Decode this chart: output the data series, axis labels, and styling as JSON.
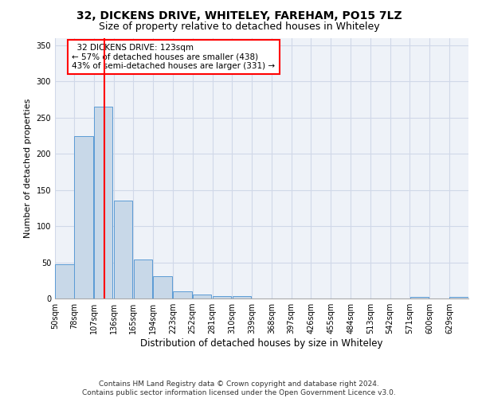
{
  "title1": "32, DICKENS DRIVE, WHITELEY, FAREHAM, PO15 7LZ",
  "title2": "Size of property relative to detached houses in Whiteley",
  "xlabel": "Distribution of detached houses by size in Whiteley",
  "ylabel": "Number of detached properties",
  "bar_color": "#c8d8e8",
  "bar_edge_color": "#5b9bd5",
  "bar_heights": [
    47,
    224,
    265,
    135,
    54,
    31,
    10,
    6,
    3,
    3,
    0,
    0,
    0,
    0,
    0,
    0,
    0,
    0,
    2,
    0,
    2
  ],
  "bin_edges": [
    50,
    78,
    107,
    136,
    165,
    194,
    223,
    252,
    281,
    310,
    339,
    368,
    397,
    426,
    455,
    484,
    513,
    542,
    571,
    600,
    629
  ],
  "x_labels": [
    "50sqm",
    "78sqm",
    "107sqm",
    "136sqm",
    "165sqm",
    "194sqm",
    "223sqm",
    "252sqm",
    "281sqm",
    "310sqm",
    "339sqm",
    "368sqm",
    "397sqm",
    "426sqm",
    "455sqm",
    "484sqm",
    "513sqm",
    "542sqm",
    "571sqm",
    "600sqm",
    "629sqm"
  ],
  "red_line_x": 123,
  "annotation_text": "  32 DICKENS DRIVE: 123sqm\n← 57% of detached houses are smaller (438)\n43% of semi-detached houses are larger (331) →",
  "annotation_box_color": "white",
  "annotation_box_edge": "red",
  "ylim": [
    0,
    360
  ],
  "yticks": [
    0,
    50,
    100,
    150,
    200,
    250,
    300,
    350
  ],
  "grid_color": "#d0d8e8",
  "bg_color": "#eef2f8",
  "footer": "Contains HM Land Registry data © Crown copyright and database right 2024.\nContains public sector information licensed under the Open Government Licence v3.0.",
  "title1_fontsize": 10,
  "title2_fontsize": 9,
  "xlabel_fontsize": 8.5,
  "ylabel_fontsize": 8,
  "tick_fontsize": 7,
  "annotation_fontsize": 7.5,
  "footer_fontsize": 6.5
}
